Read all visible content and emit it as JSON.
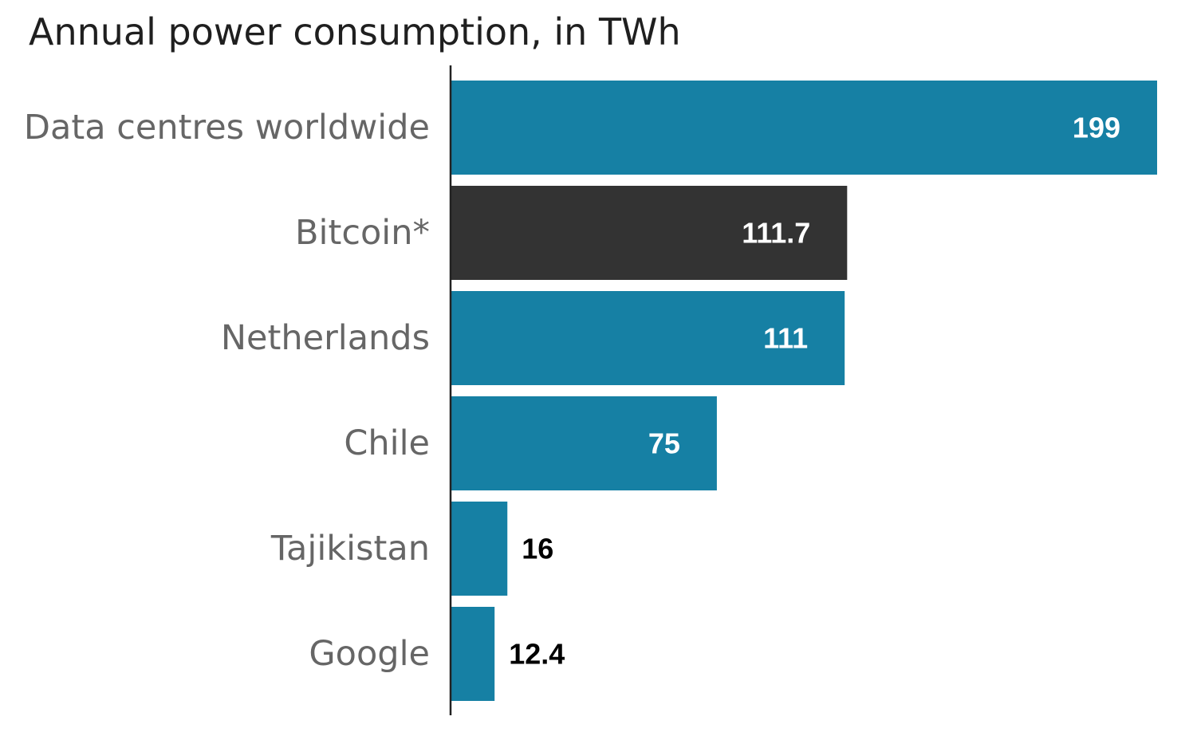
{
  "chart_data": {
    "type": "bar",
    "orientation": "horizontal",
    "title": "Annual power consumption, in TWh",
    "xlabel": "",
    "ylabel": "",
    "categories": [
      "Data centres worldwide",
      "Bitcoin*",
      "Netherlands",
      "Chile",
      "Tajikistan",
      "Google"
    ],
    "values": [
      199,
      111.7,
      111,
      75,
      16,
      12.4
    ],
    "value_labels": [
      "199",
      "111.7",
      "111",
      "75",
      "16",
      "12.4"
    ],
    "bar_colors": [
      "#1680a4",
      "#333333",
      "#1680a4",
      "#1680a4",
      "#1680a4",
      "#1680a4"
    ],
    "xlim": [
      0,
      199
    ],
    "grid": false,
    "legend": "none"
  },
  "colors": {
    "accent": "#1680a4",
    "highlight": "#333333",
    "category_text": "#666666",
    "value_inside": "#ffffff",
    "value_outside": "#000000",
    "axis": "#222222"
  }
}
